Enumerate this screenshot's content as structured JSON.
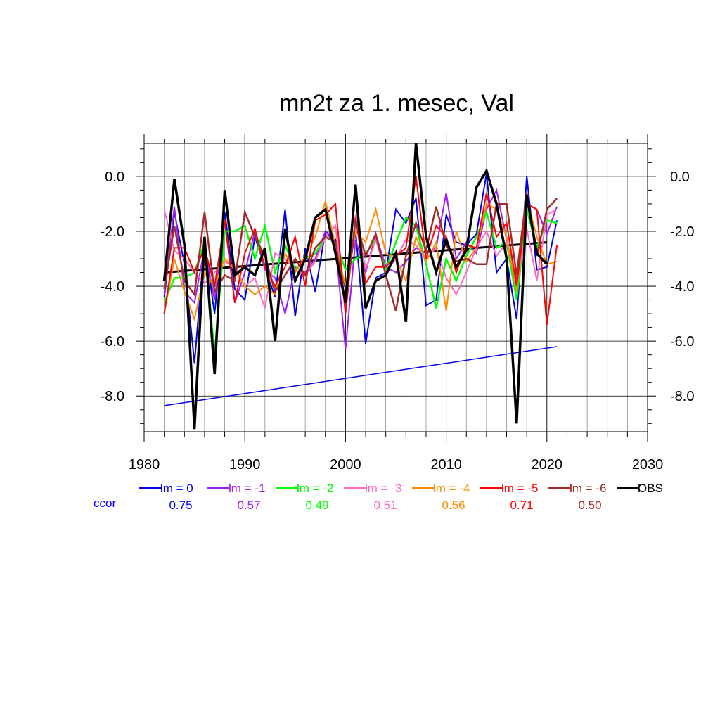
{
  "chart_data": {
    "type": "line",
    "title": "mn2t za 1. mesec, Val",
    "xlabel": "",
    "ylabel": "",
    "xlim": [
      1980,
      2030
    ],
    "ylim": [
      -9.3,
      1.2
    ],
    "x_ticks": [
      {
        "value": 1980,
        "label": "1980"
      },
      {
        "value": 1990,
        "label": "1990"
      },
      {
        "value": 2000,
        "label": "2000"
      },
      {
        "value": 2010,
        "label": "2010"
      },
      {
        "value": 2020,
        "label": "2020"
      },
      {
        "value": 2030,
        "label": "2030"
      }
    ],
    "y_ticks": [
      {
        "value": 0,
        "label": "0.0"
      },
      {
        "value": -2,
        "label": "-2.0"
      },
      {
        "value": -4,
        "label": "-4.0"
      },
      {
        "value": -6,
        "label": "-6.0"
      },
      {
        "value": -8,
        "label": "-8.0"
      }
    ],
    "grid": true,
    "legend_position": "bottom",
    "ccor_label": "ccor",
    "ccor_color": "#0000ff",
    "x": [
      1982,
      1983,
      1984,
      1985,
      1986,
      1987,
      1988,
      1989,
      1990,
      1991,
      1992,
      1993,
      1994,
      1995,
      1996,
      1997,
      1998,
      1999,
      2000,
      2001,
      2002,
      2003,
      2004,
      2005,
      2006,
      2007,
      2008,
      2009,
      2010,
      2011,
      2012,
      2013,
      2014,
      2015,
      2016,
      2017,
      2018,
      2019,
      2020,
      2021
    ],
    "series": [
      {
        "name": "lm = 0",
        "color": "#0000e6",
        "width": 2,
        "ccor": "0.75",
        "values": [
          -4.4,
          -1.3,
          -3.2,
          -6.8,
          -2.4,
          -5.0,
          -1.3,
          -4.1,
          -4.5,
          -2.2,
          -3.3,
          -4.4,
          -1.2,
          -5.1,
          -2.6,
          -4.2,
          -2.0,
          -2.3,
          -4.1,
          -2.0,
          -6.1,
          -3.7,
          -3.5,
          -1.2,
          -1.7,
          -0.8,
          -4.7,
          -4.5,
          -1.4,
          -2.4,
          -2.5,
          -2.1,
          0.1,
          -3.5,
          -3.0,
          -5.2,
          0.0,
          -3.4,
          -3.3,
          -1.6
        ]
      },
      {
        "name": "lm = -1",
        "color": "#a020f0",
        "width": 2,
        "ccor": "0.57",
        "values": [
          -4.3,
          -1.1,
          -4.2,
          -4.6,
          -2.6,
          -4.5,
          -1.6,
          -4.6,
          -3.5,
          -2.0,
          -3.4,
          -3.7,
          -5.0,
          -3.3,
          -3.5,
          -3.0,
          -2.0,
          -2.5,
          -6.3,
          -2.3,
          -3.5,
          -2.1,
          -3.3,
          -3.5,
          -3.1,
          -2.6,
          -2.8,
          -2.6,
          -0.6,
          -3.0,
          -2.4,
          -2.8,
          -1.2,
          -0.5,
          -2.3,
          -3.8,
          -1.0,
          -1.2,
          -2.1,
          -1.1
        ]
      },
      {
        "name": "lm = -2",
        "color": "#00ff00",
        "width": 2.5,
        "ccor": "0.49",
        "values": [
          -4.6,
          -3.7,
          -3.7,
          -3.5,
          -2.4,
          -6.5,
          -2.0,
          -2.0,
          -1.8,
          -3.0,
          -1.8,
          -3.5,
          -2.5,
          -3.4,
          -3.0,
          -2.8,
          -2.2,
          -2.4,
          -3.4,
          -3.0,
          -2.8,
          -2.3,
          -3.4,
          -2.4,
          -1.5,
          -1.8,
          -3.2,
          -4.8,
          -3.0,
          -3.8,
          -2.9,
          -2.2,
          -1.3,
          -2.6,
          -2.4,
          -4.5,
          -1.2,
          -2.6,
          -1.6,
          -1.7
        ]
      },
      {
        "name": "lm = -3",
        "color": "#ff69c0",
        "width": 2,
        "ccor": "0.51",
        "values": [
          -1.2,
          -2.7,
          -3.0,
          -3.5,
          -3.9,
          -3.5,
          -3.1,
          -3.3,
          -4.0,
          -3.7,
          -4.8,
          -2.8,
          -3.0,
          -3.4,
          -3.6,
          -3.1,
          -2.2,
          -1.8,
          -5.0,
          -1.4,
          -3.4,
          -2.3,
          -3.5,
          -3.0,
          -2.3,
          -2.5,
          -3.0,
          -2.6,
          -3.7,
          -4.3,
          -3.5,
          -2.6,
          -2.0,
          -2.9,
          -2.4,
          -3.9,
          -1.9,
          -3.8,
          -1.4,
          -1.2
        ]
      },
      {
        "name": "lm = -4",
        "color": "#ff8c00",
        "width": 2,
        "ccor": "0.56",
        "values": [
          -5.0,
          -3.0,
          -4.2,
          -5.2,
          -3.5,
          -4.0,
          -3.0,
          -3.4,
          -4.0,
          -4.3,
          -4.0,
          -4.3,
          -2.8,
          -3.5,
          -2.9,
          -2.2,
          -0.9,
          -2.5,
          -4.0,
          -2.0,
          -2.4,
          -1.2,
          -2.8,
          -3.0,
          -3.8,
          -2.2,
          -3.1,
          -2.4,
          -4.9,
          -2.0,
          -3.1,
          -2.6,
          -1.0,
          -1.2,
          -2.2,
          -4.2,
          -0.8,
          -2.2,
          -3.2,
          -3.1
        ]
      },
      {
        "name": "lm = -5",
        "color": "#ff0000",
        "width": 2,
        "ccor": "0.71",
        "values": [
          -5.0,
          -2.6,
          -2.6,
          -3.5,
          -2.6,
          -4.0,
          -1.6,
          -4.6,
          -2.8,
          -1.9,
          -3.3,
          -4.0,
          -3.3,
          -2.2,
          -4.0,
          -1.6,
          -1.4,
          -1.0,
          -5.0,
          -1.5,
          -3.9,
          -3.3,
          -3.3,
          -2.9,
          -2.6,
          0.0,
          -3.0,
          -1.8,
          -2.2,
          -3.5,
          -2.5,
          -2.6,
          -0.6,
          -2.2,
          -1.7,
          -4.0,
          -1.0,
          -1.2,
          -5.4,
          -2.5
        ]
      },
      {
        "name": "lm = -6",
        "color": "#a52a2a",
        "width": 2.5,
        "ccor": "0.50",
        "values": [
          -4.1,
          -1.8,
          -3.8,
          -4.3,
          -1.3,
          -4.2,
          -3.6,
          -3.8,
          -1.3,
          -2.2,
          -2.9,
          -4.2,
          -3.6,
          -3.0,
          -3.6,
          -2.6,
          -2.2,
          -2.4,
          -4.7,
          -1.6,
          -2.9,
          -2.1,
          -3.6,
          -4.9,
          -2.9,
          -1.7,
          -2.7,
          -1.1,
          -2.5,
          -3.1,
          -3.0,
          -3.2,
          -3.2,
          -1.0,
          -1.0,
          -3.6,
          -0.6,
          -2.9,
          -1.2,
          -0.8
        ]
      },
      {
        "name": "OBS",
        "color": "#000000",
        "width": 3.5,
        "ccor": "",
        "values": [
          -3.8,
          -0.1,
          -2.5,
          -9.2,
          -2.2,
          -7.2,
          -0.5,
          -3.6,
          -3.3,
          -3.6,
          -2.6,
          -6.0,
          -1.9,
          -3.8,
          -3.0,
          -1.5,
          -1.2,
          -2.8,
          -4.6,
          -0.3,
          -4.8,
          -3.8,
          -3.6,
          -2.8,
          -5.3,
          1.2,
          -2.2,
          -3.5,
          -2.3,
          -3.3,
          -2.7,
          -0.4,
          0.2,
          -1.0,
          -3.0,
          -9.0,
          -0.7,
          -2.8,
          -3.2,
          null
        ]
      }
    ],
    "trend_lines": [
      {
        "name": "OBS trend",
        "color": "#000000",
        "width": 3,
        "x": [
          1982,
          2020
        ],
        "y": [
          -3.5,
          -2.4
        ]
      },
      {
        "name": "lm = 0 trend",
        "color": "#0000e6",
        "width": 1.5,
        "x": [
          1982,
          2021
        ],
        "y": [
          -8.35,
          -6.2
        ]
      }
    ]
  }
}
